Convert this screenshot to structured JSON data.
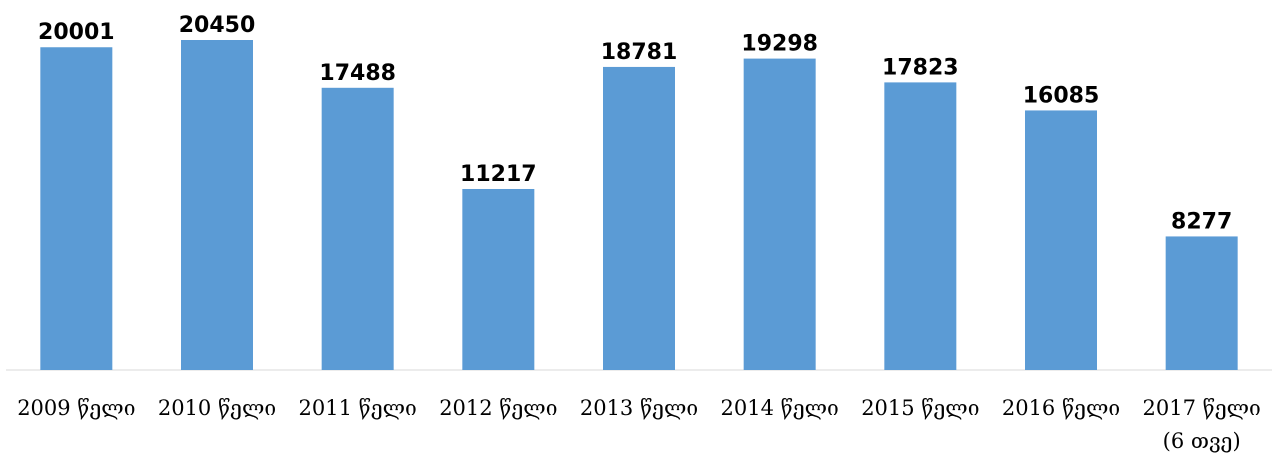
{
  "chart_data": {
    "type": "bar",
    "categories": [
      "2009 წელი",
      "2010 წელი",
      "2011 წელი",
      "2012 წელი",
      "2013 წელი",
      "2014 წელი",
      "2015 წელი",
      "2016 წელი",
      "2017 წელი (6 თვე)"
    ],
    "values": [
      20001,
      20450,
      17488,
      11217,
      18781,
      19298,
      17823,
      16085,
      8277
    ],
    "color": "#5b9bd5"
  }
}
